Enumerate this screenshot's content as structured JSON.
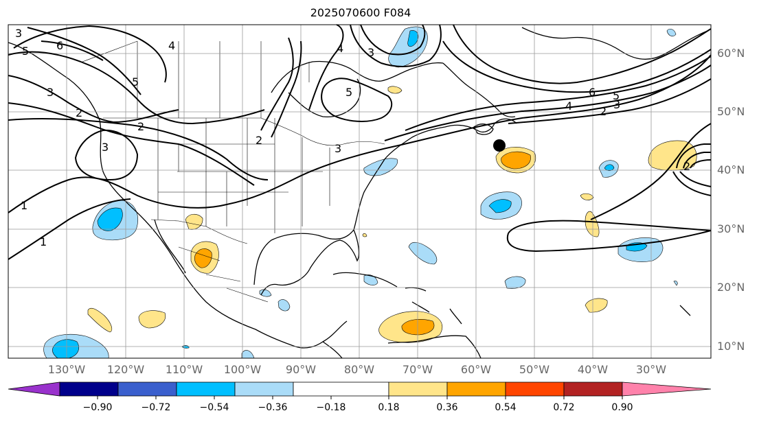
{
  "title": "2025070600 F084",
  "lat_labels": [
    "60°N",
    "50°N",
    "40°N",
    "30°N",
    "20°N",
    "10°N"
  ],
  "lon_labels": [
    "130°W",
    "120°W",
    "110°W",
    "100°W",
    "90°W",
    "80°W",
    "70°W",
    "60°W",
    "50°W",
    "40°W",
    "30°W"
  ],
  "colorbar": {
    "ticks": [
      "−0.90",
      "−0.72",
      "−0.54",
      "−0.36",
      "−0.18",
      "0.18",
      "0.36",
      "0.54",
      "0.72",
      "0.90"
    ],
    "colors": [
      "#9932cc",
      "#00008b",
      "#3a5fcd",
      "#00bfff",
      "#aadcf8",
      "#ffffff",
      "#ffe58a",
      "#ffa500",
      "#ff4500",
      "#b22222",
      "#ff82ab"
    ]
  },
  "contour_labels": [
    "3",
    "5",
    "6",
    "4",
    "3",
    "5",
    "2",
    "3",
    "2",
    "1",
    "1",
    "6",
    "5",
    "4",
    "3",
    "2",
    "2",
    "3",
    "5",
    "4",
    "3",
    "2"
  ],
  "fill_colors": {
    "light_blue": "#aadcf8",
    "blue": "#00bfff",
    "yellow": "#ffe58a",
    "orange": "#ffa500"
  },
  "marker_color": "#000000"
}
